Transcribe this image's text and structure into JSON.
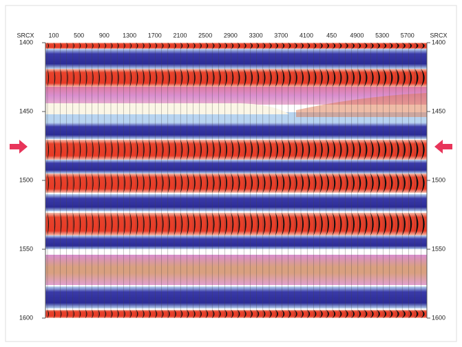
{
  "chart_data": {
    "type": "seismic",
    "x_label": "SRCX",
    "categories": [
      "100",
      "500",
      "900",
      "1300",
      "1700",
      "2100",
      "2500",
      "2900",
      "3300",
      "3700",
      "4100",
      "450",
      "4900",
      "5300",
      "5700"
    ],
    "ylim": [
      1400,
      1600
    ],
    "yticks": [
      1400,
      1450,
      1500,
      1550,
      1600
    ]
  }
}
